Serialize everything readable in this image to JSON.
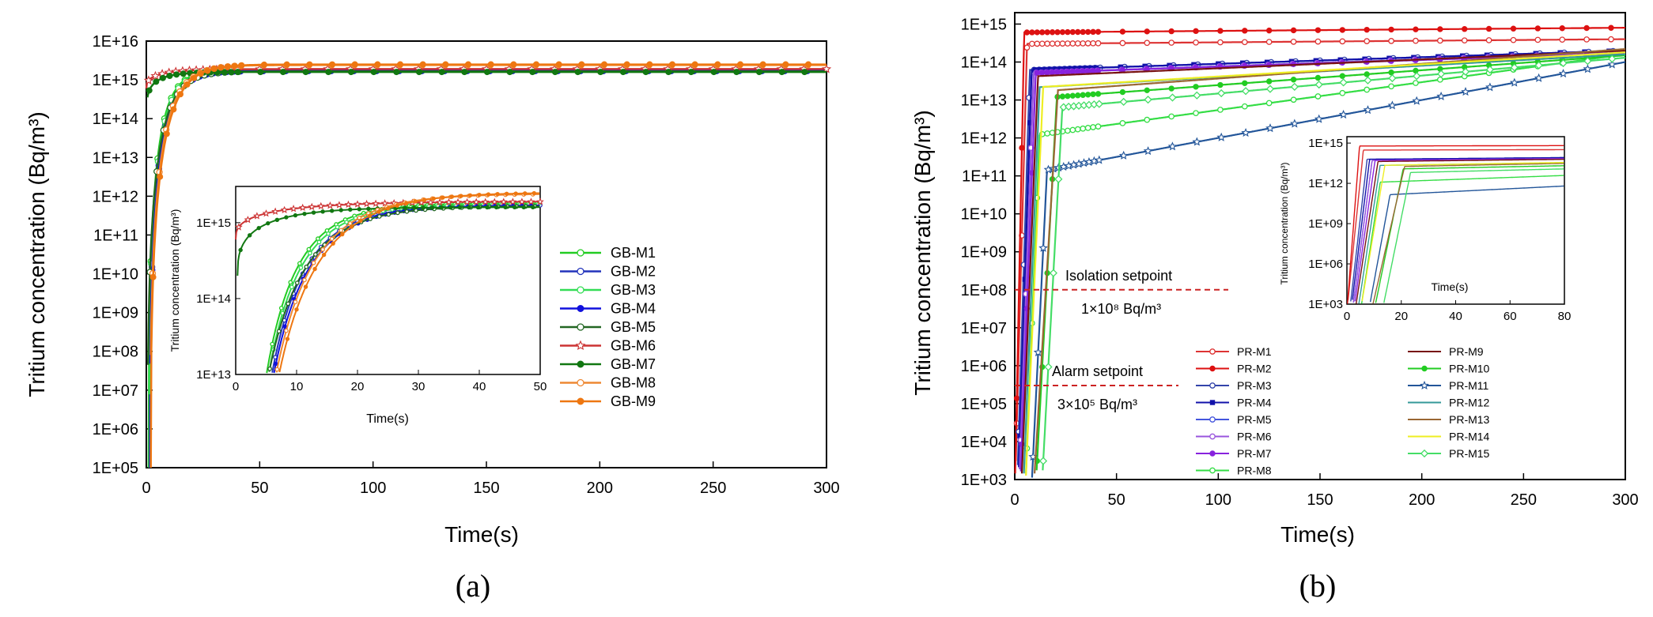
{
  "chart_data": [
    {
      "panel": "a",
      "type": "line",
      "panel_label": "(a)",
      "xlabel": "Time(s)",
      "ylabel": "Tritium concentration (Bq/m³)",
      "xlim": [
        0,
        300
      ],
      "ylim": [
        100000,
        10000000000000000
      ],
      "yscale": "log",
      "x_ticks": [
        "0",
        "50",
        "100",
        "150",
        "200",
        "250",
        "300"
      ],
      "y_ticks": [
        "1E+05",
        "1E+06",
        "1E+07",
        "1E+08",
        "1E+09",
        "1E+10",
        "1E+11",
        "1E+12",
        "1E+13",
        "1E+14",
        "1E+15",
        "1E+16"
      ],
      "legend_position": "center-right",
      "series": [
        {
          "name": "GB-M1",
          "color": "#22cc22",
          "marker": "circle-open",
          "t0": 1.0,
          "tau": 6.0,
          "final": 1800000000000000
        },
        {
          "name": "GB-M2",
          "color": "#2233bb",
          "marker": "circle-open",
          "t0": 1.5,
          "tau": 6.5,
          "final": 1700000000000000
        },
        {
          "name": "GB-M3",
          "color": "#33dd55",
          "marker": "circle-open",
          "t0": 1.2,
          "tau": 6.2,
          "final": 1750000000000000
        },
        {
          "name": "GB-M4",
          "color": "#1111dd",
          "marker": "circle-filled",
          "t0": 1.6,
          "tau": 6.8,
          "final": 1700000000000000
        },
        {
          "name": "GB-M5",
          "color": "#226622",
          "marker": "circle-open",
          "t0": 0.6,
          "tau": 7.0,
          "final": 1650000000000000
        },
        {
          "name": "GB-M6",
          "color": "#cc3333",
          "marker": "star-open",
          "t0": 0.0,
          "tau": 12.0,
          "final": 1900000000000000,
          "start": 600000000000000
        },
        {
          "name": "GB-M7",
          "color": "#117711",
          "marker": "circle-filled",
          "t0": 0.3,
          "tau": 8.0,
          "final": 1600000000000000,
          "start": 200000000000000
        },
        {
          "name": "GB-M8",
          "color": "#ee8833",
          "marker": "circle-open",
          "t0": 1.8,
          "tau": 7.5,
          "final": 2400000000000000
        },
        {
          "name": "GB-M9",
          "color": "#ee7711",
          "marker": "circle-filled",
          "t0": 2.0,
          "tau": 8.0,
          "final": 2500000000000000
        }
      ],
      "inset": {
        "xlabel": "Time(s)",
        "ylabel": "Tritium concentration (Bq/m³)",
        "xlim": [
          0,
          50
        ],
        "ylim": [
          10000000000000,
          3000000000000000
        ],
        "x_ticks": [
          "0",
          "10",
          "20",
          "30",
          "40",
          "50"
        ],
        "y_ticks": [
          "1E+13",
          "1E+14",
          "1E+15"
        ]
      }
    },
    {
      "panel": "b",
      "type": "line",
      "panel_label": "(b)",
      "xlabel": "Time(s)",
      "ylabel": "Tritium concentration (Bq/m³)",
      "xlim": [
        0,
        300
      ],
      "ylim": [
        1000,
        2000000000000000
      ],
      "yscale": "log",
      "x_ticks": [
        "0",
        "50",
        "100",
        "150",
        "200",
        "250",
        "300"
      ],
      "y_ticks": [
        "1E+03",
        "1E+04",
        "1E+05",
        "1E+06",
        "1E+07",
        "1E+08",
        "1E+09",
        "1E+10",
        "1E+11",
        "1E+12",
        "1E+13",
        "1E+14",
        "1E+15"
      ],
      "legend_position": "bottom-center",
      "annotations": [
        {
          "title": "Isolation setpoint",
          "value_text": "1×10⁸ Bq/m³",
          "y": 100000000,
          "color": "#cc2222"
        },
        {
          "title": "Alarm setpoint",
          "value_text": "3×10⁵ Bq/m³",
          "y": 300000,
          "color": "#cc2222"
        }
      ],
      "series": [
        {
          "name": "PR-M1",
          "color": "#dd3333",
          "marker": "circle-open",
          "t0": 0.0,
          "k": 0.9,
          "plateau": 300000000000000,
          "final": 400000000000000
        },
        {
          "name": "PR-M2",
          "color": "#dd1111",
          "marker": "circle-filled",
          "t0": 0.0,
          "k": 1.2,
          "plateau": 600000000000000,
          "final": 800000000000000
        },
        {
          "name": "PR-M3",
          "color": "#3344aa",
          "marker": "circle-open",
          "t0": 1.0,
          "k": 0.8,
          "plateau": 60000000000000,
          "final": 200000000000000
        },
        {
          "name": "PR-M4",
          "color": "#1111aa",
          "marker": "square-filled",
          "t0": 1.5,
          "k": 0.75,
          "plateau": 60000000000000,
          "final": 200000000000000
        },
        {
          "name": "PR-M5",
          "color": "#4455dd",
          "marker": "circle-open",
          "t0": 2.0,
          "k": 0.7,
          "plateau": 50000000000000,
          "final": 180000000000000
        },
        {
          "name": "PR-M6",
          "color": "#9955dd",
          "marker": "circle-open",
          "t0": 2.0,
          "k": 0.7,
          "plateau": 50000000000000,
          "final": 180000000000000
        },
        {
          "name": "PR-M7",
          "color": "#8822dd",
          "marker": "circle-filled",
          "t0": 2.5,
          "k": 0.65,
          "plateau": 50000000000000,
          "final": 170000000000000
        },
        {
          "name": "PR-M8",
          "color": "#33dd44",
          "marker": "circle-open",
          "t0": 5.0,
          "k": 0.6,
          "plateau": 1000000000000,
          "final": 160000000000000
        },
        {
          "name": "PR-M9",
          "color": "#771111",
          "marker": "none",
          "t0": 3.0,
          "k": 0.6,
          "plateau": 40000000000000,
          "final": 200000000000000
        },
        {
          "name": "PR-M10",
          "color": "#22cc22",
          "marker": "circle-filled",
          "t0": 10.0,
          "k": 0.45,
          "plateau": 10000000000000,
          "final": 150000000000000
        },
        {
          "name": "PR-M11",
          "color": "#225599",
          "marker": "star-open",
          "t0": 8.0,
          "k": 0.5,
          "plateau": 100000000000,
          "final": 100000000000000
        },
        {
          "name": "PR-M12",
          "color": "#339999",
          "marker": "none",
          "t0": 4.0,
          "k": 0.6,
          "plateau": 20000000000000,
          "final": 160000000000000
        },
        {
          "name": "PR-M13",
          "color": "#996633",
          "marker": "none",
          "t0": 9.0,
          "k": 0.4,
          "plateau": 15000000000000,
          "final": 220000000000000
        },
        {
          "name": "PR-M14",
          "color": "#eeee22",
          "marker": "none",
          "t0": 5.0,
          "k": 0.55,
          "plateau": 20000000000000,
          "final": 180000000000000
        },
        {
          "name": "PR-M15",
          "color": "#44dd66",
          "marker": "diamond-open",
          "t0": 13.0,
          "k": 0.45,
          "plateau": 5000000000000,
          "final": 130000000000000
        }
      ],
      "inset": {
        "xlabel": "Time(s)",
        "ylabel": "Tritium concentration (Bq/m³)",
        "xlim": [
          0,
          80
        ],
        "ylim": [
          1000,
          3000000000000000
        ],
        "x_ticks": [
          "0",
          "20",
          "40",
          "60",
          "80"
        ],
        "y_ticks": [
          "1E+03",
          "1E+06",
          "1E+09",
          "1E+12",
          "1E+15"
        ]
      }
    }
  ]
}
